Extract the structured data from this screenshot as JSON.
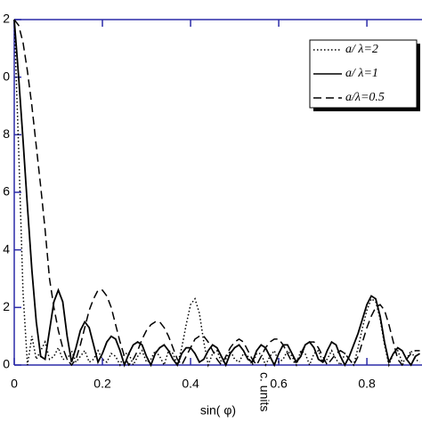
{
  "chart_data": {
    "type": "line",
    "x_label": "sin( φ)",
    "annotation": "c. units",
    "x": [
      0,
      0.01,
      0.02,
      0.03,
      0.04,
      0.05,
      0.06,
      0.07,
      0.08,
      0.09,
      0.1,
      0.11,
      0.12,
      0.13,
      0.14,
      0.15,
      0.16,
      0.17,
      0.18,
      0.19,
      0.2,
      0.21,
      0.22,
      0.23,
      0.24,
      0.25,
      0.26,
      0.27,
      0.28,
      0.29,
      0.3,
      0.31,
      0.32,
      0.33,
      0.34,
      0.35,
      0.36,
      0.37,
      0.38,
      0.39,
      0.4,
      0.41,
      0.42,
      0.43,
      0.44,
      0.45,
      0.46,
      0.47,
      0.48,
      0.49,
      0.5,
      0.51,
      0.52,
      0.53,
      0.54,
      0.55,
      0.56,
      0.57,
      0.58,
      0.59,
      0.6,
      0.61,
      0.62,
      0.63,
      0.64,
      0.65,
      0.66,
      0.67,
      0.68,
      0.69,
      0.7,
      0.71,
      0.72,
      0.73,
      0.74,
      0.75,
      0.76,
      0.77,
      0.78,
      0.79,
      0.8,
      0.81,
      0.82,
      0.83,
      0.84,
      0.85,
      0.86,
      0.87,
      0.88,
      0.89,
      0.9,
      0.91,
      0.92
    ],
    "series": [
      {
        "name": "a/ λ=2",
        "color": "#000000",
        "dash": "dotted",
        "values": [
          1.2,
          0.75,
          0.25,
          0.0,
          0.1,
          0.02,
          0.05,
          0.08,
          0.02,
          0.03,
          0.06,
          0.02,
          0.02,
          0.05,
          0.01,
          0.03,
          0.05,
          0.01,
          0.02,
          0.05,
          0.02,
          0.01,
          0.04,
          0.03,
          0.0,
          0.04,
          0.04,
          0.0,
          0.03,
          0.05,
          0.01,
          0.02,
          0.05,
          0.03,
          0.0,
          0.05,
          0.04,
          0.0,
          0.06,
          0.14,
          0.21,
          0.23,
          0.18,
          0.08,
          0.0,
          0.04,
          0.05,
          0.01,
          0.02,
          0.05,
          0.02,
          0.01,
          0.04,
          0.03,
          0.0,
          0.04,
          0.04,
          0.0,
          0.03,
          0.05,
          0.01,
          0.02,
          0.05,
          0.03,
          0.0,
          0.05,
          0.04,
          0.0,
          0.04,
          0.05,
          0.01,
          0.02,
          0.05,
          0.02,
          0.0,
          0.04,
          0.02,
          0.0,
          0.06,
          0.13,
          0.19,
          0.23,
          0.22,
          0.16,
          0.07,
          0.0,
          0.04,
          0.05,
          0.01,
          0.02,
          0.05,
          0.02,
          0.01
        ]
      },
      {
        "name": "a/ λ=1",
        "color": "#000000",
        "dash": "solid",
        "values": [
          1.2,
          1.0,
          0.78,
          0.55,
          0.33,
          0.15,
          0.03,
          0.02,
          0.12,
          0.22,
          0.26,
          0.22,
          0.1,
          0.01,
          0.06,
          0.12,
          0.15,
          0.13,
          0.07,
          0.01,
          0.04,
          0.08,
          0.1,
          0.09,
          0.05,
          0.0,
          0.04,
          0.07,
          0.08,
          0.07,
          0.03,
          0.0,
          0.04,
          0.06,
          0.07,
          0.05,
          0.02,
          0.0,
          0.04,
          0.06,
          0.06,
          0.04,
          0.01,
          0.02,
          0.05,
          0.07,
          0.06,
          0.03,
          0.0,
          0.04,
          0.06,
          0.07,
          0.05,
          0.02,
          0.01,
          0.05,
          0.07,
          0.06,
          0.03,
          0.0,
          0.04,
          0.07,
          0.07,
          0.04,
          0.01,
          0.03,
          0.07,
          0.08,
          0.06,
          0.02,
          0.01,
          0.05,
          0.08,
          0.07,
          0.03,
          0.0,
          0.03,
          0.07,
          0.11,
          0.16,
          0.21,
          0.24,
          0.23,
          0.17,
          0.08,
          0.01,
          0.04,
          0.06,
          0.05,
          0.02,
          0.0,
          0.03,
          0.04
        ]
      },
      {
        "name": "a/λ=0.5",
        "color": "#000000",
        "dash": "dashed",
        "values": [
          1.2,
          1.18,
          1.12,
          1.02,
          0.9,
          0.76,
          0.62,
          0.47,
          0.3,
          0.2,
          0.12,
          0.06,
          0.02,
          0.0,
          0.02,
          0.07,
          0.13,
          0.19,
          0.23,
          0.26,
          0.26,
          0.24,
          0.2,
          0.14,
          0.08,
          0.03,
          0.0,
          0.02,
          0.05,
          0.09,
          0.12,
          0.14,
          0.15,
          0.15,
          0.13,
          0.1,
          0.06,
          0.02,
          0.0,
          0.03,
          0.06,
          0.09,
          0.1,
          0.1,
          0.08,
          0.05,
          0.02,
          0.0,
          0.03,
          0.06,
          0.08,
          0.09,
          0.08,
          0.05,
          0.02,
          0.0,
          0.03,
          0.06,
          0.08,
          0.09,
          0.09,
          0.07,
          0.04,
          0.01,
          0.01,
          0.04,
          0.07,
          0.08,
          0.08,
          0.06,
          0.03,
          0.0,
          0.02,
          0.04,
          0.05,
          0.04,
          0.02,
          0.0,
          0.03,
          0.08,
          0.13,
          0.17,
          0.2,
          0.21,
          0.19,
          0.14,
          0.08,
          0.02,
          0.0,
          0.02,
          0.04,
          0.05,
          0.05
        ]
      }
    ],
    "xlim": [
      0,
      0.925
    ],
    "ylim": [
      0,
      1.2
    ],
    "xticks": [
      0,
      0.2,
      0.4,
      0.6,
      0.8
    ],
    "yticks": [
      0,
      {
        "value": 0.2,
        "label": "2"
      },
      {
        "value": 0.4,
        "label": "4"
      },
      {
        "value": 0.6,
        "label": "6"
      },
      {
        "value": 0.8,
        "label": "8"
      },
      {
        "value": 1.0,
        "label": "0"
      },
      {
        "value": 1.2,
        "label": "2"
      }
    ],
    "axis_color": "#2b2ba8",
    "legend": "top-right"
  }
}
